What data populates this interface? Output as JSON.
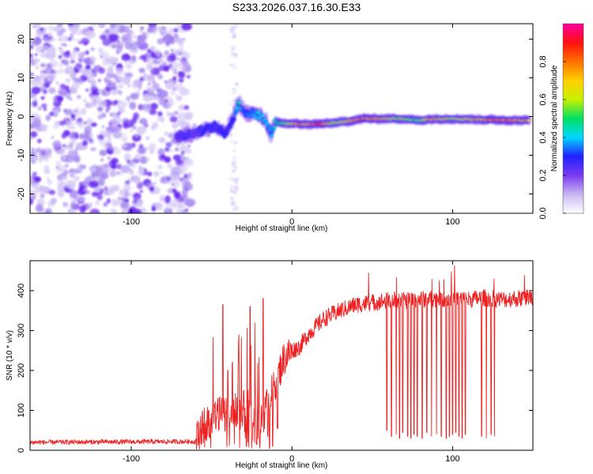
{
  "figure": {
    "title": "S233.2026.037.16.30.E33"
  },
  "chart_data": [
    {
      "type": "heatmap",
      "xlabel": "Height of straight line (km)",
      "ylabel": "Frequency (Hz)",
      "xlim": [
        -163,
        150
      ],
      "ylim": [
        -25,
        24
      ],
      "x_ticks": [
        -100,
        0,
        100
      ],
      "y_ticks": [
        -20,
        -10,
        0,
        10,
        20
      ],
      "noise_region_x": [
        -163,
        -67
      ],
      "signal_track": [
        {
          "x": -72,
          "f": -4.5,
          "amp": 0.2
        },
        {
          "x": -66,
          "f": -4.8,
          "amp": 0.25
        },
        {
          "x": -60,
          "f": -4.0,
          "amp": 0.2
        },
        {
          "x": -54,
          "f": -3.5,
          "amp": 0.3
        },
        {
          "x": -48,
          "f": -2.5,
          "amp": 0.25
        },
        {
          "x": -42,
          "f": -4.5,
          "amp": 0.3
        },
        {
          "x": -37,
          "f": -1.0,
          "amp": 0.3
        },
        {
          "x": -33,
          "f": 3.5,
          "amp": 0.45
        },
        {
          "x": -29,
          "f": 1.0,
          "amp": 0.35
        },
        {
          "x": -24,
          "f": 0.8,
          "amp": 0.4
        },
        {
          "x": -20,
          "f": 0.2,
          "amp": 0.45
        },
        {
          "x": -16,
          "f": -1.0,
          "amp": 0.4
        },
        {
          "x": -13,
          "f": -4.8,
          "amp": 0.35
        },
        {
          "x": -10,
          "f": -1.5,
          "amp": 0.5
        },
        {
          "x": -4,
          "f": -1.8,
          "amp": 0.6
        },
        {
          "x": 4,
          "f": -1.9,
          "amp": 0.85
        },
        {
          "x": 10,
          "f": -2.0,
          "amp": 0.75
        },
        {
          "x": 18,
          "f": -1.9,
          "amp": 0.9
        },
        {
          "x": 25,
          "f": -1.7,
          "amp": 0.6
        },
        {
          "x": 35,
          "f": -1.2,
          "amp": 0.75
        },
        {
          "x": 45,
          "f": -0.5,
          "amp": 0.85
        },
        {
          "x": 55,
          "f": -0.6,
          "amp": 0.75
        },
        {
          "x": 65,
          "f": -0.5,
          "amp": 0.65
        },
        {
          "x": 75,
          "f": -0.8,
          "amp": 0.6
        },
        {
          "x": 80,
          "f": -1.0,
          "amp": 0.55
        },
        {
          "x": 85,
          "f": -0.7,
          "amp": 0.8
        },
        {
          "x": 92,
          "f": -0.6,
          "amp": 0.75
        },
        {
          "x": 100,
          "f": -0.6,
          "amp": 0.65
        },
        {
          "x": 110,
          "f": -0.7,
          "amp": 0.7
        },
        {
          "x": 120,
          "f": -0.8,
          "amp": 0.8
        },
        {
          "x": 130,
          "f": -0.9,
          "amp": 0.85
        },
        {
          "x": 140,
          "f": -1.0,
          "amp": 0.8
        },
        {
          "x": 148,
          "f": -1.0,
          "amp": 0.75
        }
      ],
      "colorbar": {
        "label": "Normalized spectral amplitude",
        "range": [
          0,
          1
        ],
        "ticks": [
          0.0,
          0.2,
          0.4,
          0.6,
          0.8
        ],
        "tick_labels": [
          "0.0",
          "0.2",
          "0.4",
          "0.6",
          "0.8"
        ],
        "colors": [
          "#ffffff",
          "#c9b6f2",
          "#7a3cf0",
          "#2020ff",
          "#00d8ff",
          "#00e060",
          "#c8f000",
          "#ffd000",
          "#ff7000",
          "#ff1010",
          "#ff00a0"
        ]
      }
    },
    {
      "type": "line",
      "xlabel": "Height of straight line (km)",
      "ylabel": "SNR (10 * v/v)",
      "xlim": [
        -163,
        150
      ],
      "ylim": [
        0,
        475
      ],
      "x_ticks": [
        -100,
        0,
        100
      ],
      "y_ticks": [
        0,
        100,
        200,
        300,
        400
      ],
      "series": [
        {
          "name": "SNR",
          "color": "#ee2222",
          "baseline_x": [
            -163,
            -60,
            -56,
            -45,
            -35,
            -25,
            -20,
            -15,
            -10,
            -5,
            0,
            5,
            10,
            20,
            30,
            40,
            50,
            60,
            70,
            80,
            90,
            100,
            110,
            120,
            130,
            140,
            150
          ],
          "baseline_y": [
            20,
            22,
            60,
            90,
            100,
            80,
            60,
            120,
            170,
            230,
            250,
            260,
            290,
            330,
            350,
            365,
            370,
            375,
            375,
            378,
            380,
            380,
            378,
            382,
            378,
            380,
            385
          ],
          "dropouts_x": [
            59,
            62,
            65,
            67,
            69,
            72,
            74,
            76,
            78,
            81,
            84,
            87,
            90,
            93,
            96,
            98,
            100,
            102,
            104,
            106,
            108,
            118,
            121,
            124,
            126
          ],
          "dropouts_y": [
            50,
            35,
            40,
            30,
            45,
            35,
            30,
            40,
            35,
            30,
            45,
            35,
            40,
            35,
            30,
            35,
            40,
            45,
            35,
            30,
            40,
            35,
            30,
            40,
            35
          ],
          "spikes_x": [
            -46,
            -43,
            -40,
            -37,
            -33,
            -30,
            -26,
            -23,
            -18,
            -12
          ],
          "spikes_y": [
            130,
            365,
            200,
            220,
            290,
            150,
            360,
            320,
            380,
            210
          ],
          "troughs_x": [
            -28,
            -25,
            -22,
            -20,
            -15,
            -14,
            -12,
            -9
          ],
          "troughs_y": [
            10,
            5,
            15,
            25,
            35,
            5,
            10,
            55
          ]
        }
      ]
    }
  ]
}
